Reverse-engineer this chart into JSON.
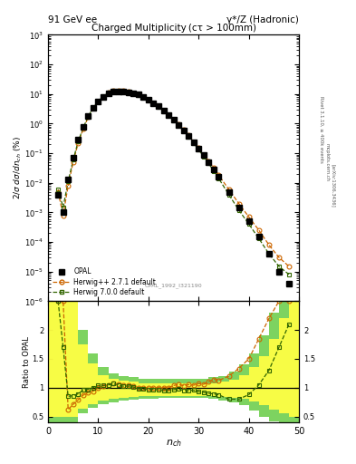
{
  "title_left": "91 GeV ee",
  "title_right": "γ*/Z (Hadronic)",
  "plot_title": "Charged Multiplicity (cτ > 100mm)",
  "ylabel_main": "2/σ dσ/dn$_{ch}$ (%)",
  "ylabel_ratio": "Ratio to OPAL",
  "xlabel": "n$_{ch}$",
  "rivet_label": "Rivet 3.1.10, ≥ 400k events",
  "arxiv_label": "[arXiv:1306.3436]",
  "mcplots_label": "mcplots.cern.ch",
  "ref_label": "OPAL_1992_I321190",
  "ylim_main": [
    1e-06,
    1000
  ],
  "ylim_ratio": [
    0.4,
    2.5
  ],
  "xlim": [
    0,
    50
  ],
  "opal_nch": [
    2,
    3,
    4,
    5,
    6,
    7,
    8,
    9,
    10,
    11,
    12,
    13,
    14,
    15,
    16,
    17,
    18,
    19,
    20,
    21,
    22,
    23,
    24,
    25,
    26,
    27,
    28,
    29,
    30,
    31,
    32,
    33,
    34,
    36,
    38,
    40,
    42,
    44,
    46,
    48
  ],
  "opal_y": [
    0.004,
    0.001,
    0.013,
    0.07,
    0.28,
    0.75,
    1.8,
    3.5,
    5.5,
    8.0,
    10.5,
    12.0,
    12.5,
    12.2,
    11.5,
    10.5,
    9.5,
    8.0,
    6.5,
    5.0,
    3.8,
    2.8,
    2.0,
    1.35,
    0.9,
    0.6,
    0.38,
    0.23,
    0.14,
    0.085,
    0.05,
    0.028,
    0.016,
    0.005,
    0.0015,
    0.0005,
    0.00015,
    4e-05,
    1e-05,
    4e-06
  ],
  "hwpp_nch": [
    2,
    3,
    4,
    5,
    6,
    7,
    8,
    9,
    10,
    11,
    12,
    13,
    14,
    15,
    16,
    17,
    18,
    19,
    20,
    21,
    22,
    23,
    24,
    25,
    26,
    27,
    28,
    29,
    30,
    31,
    32,
    33,
    34,
    36,
    38,
    40,
    42,
    44,
    46,
    48
  ],
  "hwpp_y": [
    0.005,
    0.0008,
    0.008,
    0.05,
    0.22,
    0.65,
    1.65,
    3.3,
    5.5,
    8.2,
    11.0,
    12.8,
    13.2,
    12.8,
    12.0,
    10.8,
    9.5,
    8.0,
    6.5,
    5.0,
    3.8,
    2.8,
    2.0,
    1.4,
    0.95,
    0.62,
    0.4,
    0.24,
    0.15,
    0.09,
    0.055,
    0.032,
    0.018,
    0.006,
    0.002,
    0.0007,
    0.00025,
    8e-05,
    3e-05,
    1.5e-05
  ],
  "hw7_nch": [
    2,
    3,
    4,
    5,
    6,
    7,
    8,
    9,
    10,
    11,
    12,
    13,
    14,
    15,
    16,
    17,
    18,
    19,
    20,
    21,
    22,
    23,
    24,
    25,
    26,
    27,
    28,
    29,
    30,
    31,
    32,
    33,
    34,
    36,
    38,
    40,
    42,
    44,
    46,
    48
  ],
  "hw7_y": [
    0.006,
    0.0015,
    0.011,
    0.06,
    0.25,
    0.72,
    1.75,
    3.5,
    5.7,
    8.3,
    11.0,
    12.8,
    13.0,
    12.5,
    11.8,
    10.6,
    9.3,
    7.8,
    6.3,
    4.85,
    3.65,
    2.65,
    1.9,
    1.3,
    0.88,
    0.57,
    0.36,
    0.22,
    0.13,
    0.078,
    0.045,
    0.025,
    0.014,
    0.004,
    0.0012,
    0.0004,
    0.00013,
    4e-05,
    1.5e-05,
    8e-06
  ],
  "hwpp_ratio": [
    2.5,
    2.5,
    0.62,
    0.71,
    0.79,
    0.87,
    0.92,
    0.94,
    1.0,
    1.025,
    1.048,
    1.067,
    1.056,
    1.049,
    1.043,
    1.029,
    1.0,
    1.0,
    1.0,
    1.0,
    1.0,
    1.0,
    1.0,
    1.037,
    1.056,
    1.033,
    1.053,
    1.043,
    1.071,
    1.059,
    1.1,
    1.143,
    1.125,
    1.2,
    1.333,
    1.5,
    1.85,
    2.2,
    2.5,
    2.5
  ],
  "hw7_ratio": [
    2.5,
    1.7,
    0.85,
    0.86,
    0.893,
    0.96,
    0.972,
    1.0,
    1.036,
    1.0375,
    1.048,
    1.067,
    1.04,
    1.025,
    1.026,
    1.01,
    0.979,
    0.975,
    0.969,
    0.97,
    0.961,
    0.946,
    0.95,
    0.963,
    0.978,
    0.95,
    0.947,
    0.957,
    0.929,
    0.918,
    0.9,
    0.893,
    0.875,
    0.8,
    0.8,
    0.88,
    1.05,
    1.3,
    1.7,
    2.1
  ],
  "green_band_edges": [
    0,
    2,
    4,
    6,
    8,
    10,
    12,
    14,
    16,
    18,
    20,
    22,
    24,
    26,
    28,
    30,
    32,
    34,
    36,
    38,
    40,
    42,
    44,
    46,
    48,
    50
  ],
  "green_band_lo": [
    0.4,
    0.4,
    0.4,
    0.55,
    0.65,
    0.72,
    0.75,
    0.77,
    0.79,
    0.8,
    0.81,
    0.82,
    0.82,
    0.82,
    0.82,
    0.82,
    0.8,
    0.78,
    0.75,
    0.7,
    0.6,
    0.5,
    0.42,
    0.4,
    0.4,
    0.4
  ],
  "green_band_hi": [
    2.5,
    2.5,
    2.5,
    2.0,
    1.6,
    1.35,
    1.25,
    1.2,
    1.18,
    1.16,
    1.15,
    1.15,
    1.15,
    1.15,
    1.15,
    1.15,
    1.18,
    1.2,
    1.28,
    1.4,
    1.6,
    1.9,
    2.3,
    2.5,
    2.5,
    2.5
  ],
  "yellow_band_edges": [
    0,
    2,
    4,
    6,
    8,
    10,
    12,
    14,
    16,
    18,
    20,
    22,
    24,
    26,
    28,
    30,
    32,
    34,
    36,
    38,
    40,
    42,
    44,
    46,
    48,
    50
  ],
  "yellow_band_lo": [
    0.5,
    0.5,
    0.5,
    0.63,
    0.72,
    0.78,
    0.81,
    0.83,
    0.84,
    0.85,
    0.86,
    0.86,
    0.86,
    0.86,
    0.86,
    0.86,
    0.85,
    0.84,
    0.82,
    0.8,
    0.76,
    0.7,
    0.62,
    0.55,
    0.5,
    0.5
  ],
  "yellow_band_hi": [
    2.5,
    2.5,
    2.5,
    1.75,
    1.42,
    1.22,
    1.15,
    1.12,
    1.1,
    1.08,
    1.07,
    1.07,
    1.07,
    1.07,
    1.07,
    1.07,
    1.08,
    1.1,
    1.14,
    1.22,
    1.35,
    1.55,
    1.85,
    2.2,
    2.5,
    2.5
  ],
  "color_opal": "#000000",
  "color_hwpp": "#cc6600",
  "color_hw7": "#336600",
  "color_green_band": "#66cc44",
  "color_yellow_band": "#ffff44"
}
